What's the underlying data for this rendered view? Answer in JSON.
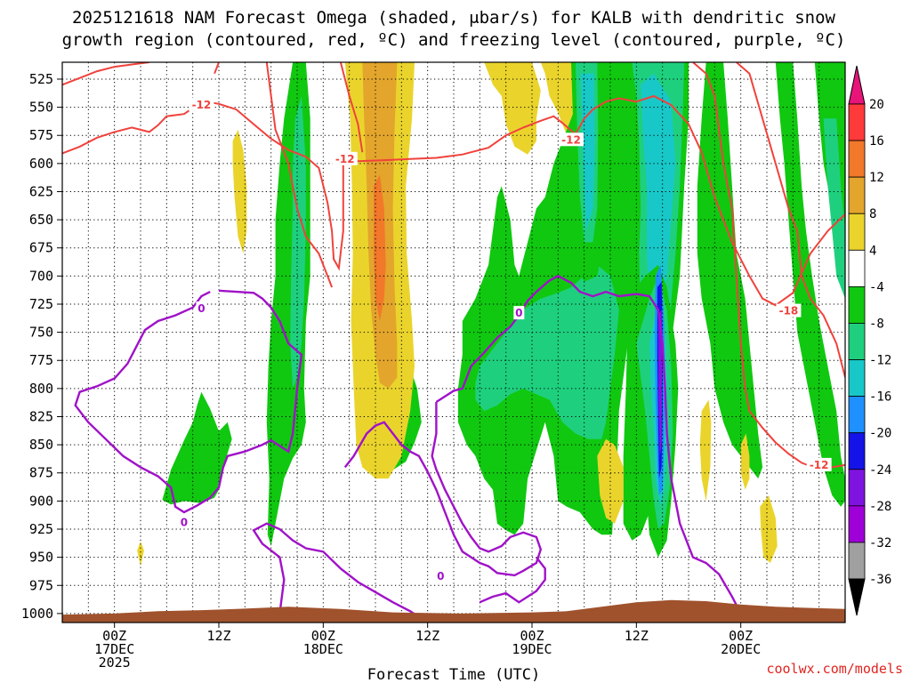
{
  "chart_data": {
    "type": "heatmap",
    "title_line1": "2025121618 NAM Forecast Omega (shaded, μbar/s) for KALB with dendritic snow",
    "title_line2": "growth region (contoured, red, ºC) and freezing level (contoured, purple, ºC)",
    "xlabel": "Forecast Time (UTC)",
    "credit": "coolwx.com/models",
    "yaxis": {
      "reversed": true,
      "range": [
        510,
        1008
      ],
      "ticks": [
        525,
        550,
        575,
        600,
        625,
        650,
        675,
        700,
        725,
        750,
        775,
        800,
        825,
        850,
        875,
        900,
        925,
        950,
        975,
        1000
      ],
      "tick_labels": [
        "525",
        "550",
        "575",
        "600",
        "625",
        "650",
        "675",
        "700",
        "725",
        "750",
        "775",
        "800",
        "825",
        "850",
        "875",
        "900",
        "925",
        "950",
        "975",
        "1000"
      ]
    },
    "xaxis": {
      "range_hours": [
        -6,
        84
      ],
      "gridline_hours": [
        -3,
        3,
        6,
        9,
        15,
        18,
        21,
        27,
        30,
        33,
        39,
        42,
        45,
        51,
        54,
        57,
        63,
        66,
        69,
        75,
        78,
        81
      ],
      "ticks": [
        {
          "hour": 0,
          "lines": [
            "00Z",
            "17DEC",
            "2025"
          ]
        },
        {
          "hour": 12,
          "lines": [
            "12Z"
          ]
        },
        {
          "hour": 24,
          "lines": [
            "00Z",
            "18DEC"
          ]
        },
        {
          "hour": 36,
          "lines": [
            "12Z"
          ]
        },
        {
          "hour": 48,
          "lines": [
            "00Z",
            "19DEC"
          ]
        },
        {
          "hour": 60,
          "lines": [
            "12Z"
          ]
        },
        {
          "hour": 72,
          "lines": [
            "00Z",
            "20DEC"
          ]
        }
      ]
    },
    "colorbar": {
      "levels": [
        "20",
        "16",
        "12",
        "8",
        "4",
        "-4",
        "-8",
        "-12",
        "-16",
        "-20",
        "-24",
        "-28",
        "-32",
        "-36"
      ],
      "bins": [
        {
          "range": [
            16,
            20
          ],
          "color": "#ff3a3a"
        },
        {
          "range": [
            12,
            16
          ],
          "color": "#f2782a"
        },
        {
          "range": [
            8,
            12
          ],
          "color": "#e3a52c"
        },
        {
          "range": [
            4,
            8
          ],
          "color": "#ead42c"
        },
        {
          "range": [
            -4,
            4
          ],
          "color": "#ffffff"
        },
        {
          "range": [
            -8,
            -4
          ],
          "color": "#10c810"
        },
        {
          "range": [
            -12,
            -8
          ],
          "color": "#1ed07e"
        },
        {
          "range": [
            -16,
            -12
          ],
          "color": "#18c8c8"
        },
        {
          "range": [
            -20,
            -16
          ],
          "color": "#1e90ff"
        },
        {
          "range": [
            -24,
            -20
          ],
          "color": "#1414e8"
        },
        {
          "range": [
            -28,
            -24
          ],
          "color": "#7f14e0"
        },
        {
          "range": [
            -32,
            -28
          ],
          "color": "#a000d8"
        },
        {
          "range": [
            -36,
            -32
          ],
          "color": "#a0a0a0"
        }
      ],
      "top_cap_color": "#e8147a",
      "bottom_cap_color": "#000000"
    },
    "contours": {
      "dgz_color": "#f0423c",
      "freezing_color": "#a012c8",
      "terrain_color": "#a0522d",
      "labels": [
        {
          "text": "-12",
          "hour": 10,
          "pressure": 548,
          "kind": "dgz"
        },
        {
          "text": "-12",
          "hour": 26.5,
          "pressure": 596,
          "kind": "dgz"
        },
        {
          "text": "-12",
          "hour": 52.5,
          "pressure": 579,
          "kind": "dgz"
        },
        {
          "text": "-18",
          "hour": 77.5,
          "pressure": 731,
          "kind": "dgz"
        },
        {
          "text": "-12",
          "hour": 81,
          "pressure": 868,
          "kind": "dgz"
        },
        {
          "text": "0",
          "hour": 10,
          "pressure": 729,
          "kind": "freezing"
        },
        {
          "text": "0",
          "hour": 46.5,
          "pressure": 733,
          "kind": "freezing"
        },
        {
          "text": "0",
          "hour": 8,
          "pressure": 919,
          "kind": "freezing"
        },
        {
          "text": "0",
          "hour": 37.5,
          "pressure": 967,
          "kind": "freezing"
        }
      ]
    }
  }
}
